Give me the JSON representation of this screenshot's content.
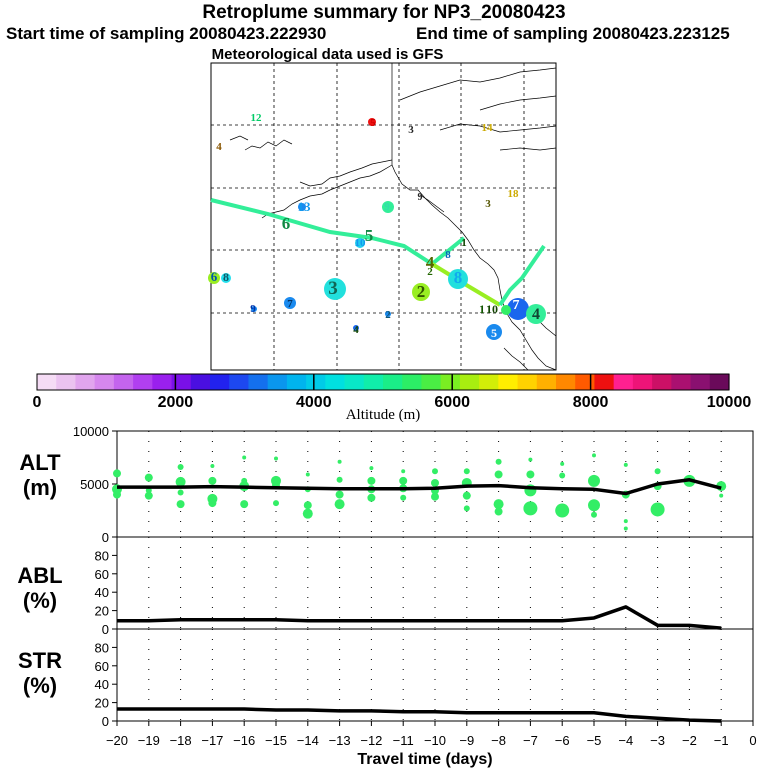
{
  "header": {
    "title": "Retroplume summary for NP3_20080423",
    "start_label": "Start time of sampling 20080423.222930",
    "end_label": "End time of sampling 20080423.223125",
    "met_label": "Meteorological data used is GFS"
  },
  "colors": {
    "track_high": "#33ee99",
    "track_mid": "#99ee22",
    "dot": "#33ee66",
    "line": "#000000"
  },
  "colorbar": {
    "ticks": [
      "0",
      "2000",
      "4000",
      "6000",
      "8000",
      "10000"
    ],
    "label": "Altitude (m)",
    "colors": [
      "#f5dcf5",
      "#ebc3f0",
      "#e1a5ee",
      "#d687ee",
      "#c464ee",
      "#b13ff0",
      "#9a20ee",
      "#7a10e8",
      "#4a0fe0",
      "#2222ee",
      "#1d48f0",
      "#1470ee",
      "#0a96ee",
      "#00b4ee",
      "#00cbe8",
      "#00e0e0",
      "#08e8c8",
      "#10eeaa",
      "#1aee88",
      "#2cee66",
      "#4aee44",
      "#7aee22",
      "#a8ee10",
      "#d2ee08",
      "#ffee00",
      "#ffd200",
      "#ffb000",
      "#ff8800",
      "#ff5a00",
      "#ee1010",
      "#ff2090",
      "#ee1478",
      "#cc1066",
      "#aa1070",
      "#8a1070",
      "#6a0a5a"
    ]
  },
  "map": {
    "labels": [
      {
        "t": "12",
        "c": "#00cc66"
      },
      {
        "t": "5",
        "c": "#cc0000"
      },
      {
        "t": "3",
        "c": "#222222"
      },
      {
        "t": "14",
        "c": "#ccaa00"
      },
      {
        "t": "4",
        "c": "#885500"
      },
      {
        "t": "9",
        "c": "#33ddaa"
      },
      {
        "t": "13",
        "c": "#1199ee"
      },
      {
        "t": "6",
        "c": "#118844"
      },
      {
        "t": "5",
        "c": "#118844"
      },
      {
        "t": "10",
        "c": "#1199ee"
      },
      {
        "t": "3",
        "c": "#555500"
      },
      {
        "t": "18",
        "c": "#ccaa00"
      },
      {
        "t": "4",
        "c": "#556600"
      },
      {
        "t": "8",
        "c": "#11aaee"
      },
      {
        "t": "3",
        "c": "#116655"
      },
      {
        "t": "2",
        "c": "#335500"
      },
      {
        "t": "8",
        "c": "#115566"
      },
      {
        "t": "1",
        "c": "#115500"
      },
      {
        "t": "10",
        "c": "#114400"
      },
      {
        "t": "7",
        "c": "#ffffff"
      },
      {
        "t": "4",
        "c": "#114433"
      },
      {
        "t": "5",
        "c": "#ffffff"
      },
      {
        "t": "6",
        "c": "#0055aa"
      },
      {
        "t": "7",
        "c": "#003366"
      },
      {
        "t": "9",
        "c": "#0033aa"
      },
      {
        "t": "2",
        "c": "#115577"
      },
      {
        "t": "4",
        "c": "#114400"
      },
      {
        "t": "8",
        "c": "#0066bb"
      },
      {
        "t": "1",
        "c": "#114400"
      },
      {
        "t": "2",
        "c": "#226600"
      },
      {
        "t": "9",
        "c": "#222222"
      }
    ]
  },
  "chart_data": [
    {
      "type": "line",
      "title": "ALT (m)",
      "xlabel": "Travel time (days)",
      "ylabel": "ALT (m)",
      "xlim": [
        -20,
        0
      ],
      "ylim": [
        0,
        10000
      ],
      "x_ticks": [
        -20,
        -19,
        -18,
        -17,
        -16,
        -15,
        -14,
        -13,
        -12,
        -11,
        -10,
        -9,
        -8,
        -7,
        -6,
        -5,
        -4,
        -3,
        -2,
        -1,
        0
      ],
      "y_ticks": [
        0,
        5000,
        10000
      ],
      "series": [
        {
          "name": "median altitude",
          "x": [
            -20,
            -19,
            -18,
            -17,
            -16,
            -15,
            -14,
            -13,
            -12,
            -11,
            -10,
            -9,
            -8,
            -7,
            -6,
            -5,
            -4,
            -3,
            -2,
            -1
          ],
          "values": [
            4700,
            4700,
            4700,
            4750,
            4700,
            4650,
            4600,
            4550,
            4550,
            4550,
            4600,
            4800,
            4850,
            4650,
            4550,
            4500,
            4100,
            5000,
            5400,
            4600
          ]
        }
      ],
      "scatter": {
        "x": [
          -20,
          -20,
          -20,
          -19,
          -19,
          -19,
          -18,
          -18,
          -18,
          -18,
          -17,
          -17,
          -17,
          -17,
          -16,
          -16,
          -16,
          -16,
          -15,
          -15,
          -15,
          -15,
          -14,
          -14,
          -14,
          -14,
          -13,
          -13,
          -13,
          -13,
          -12,
          -12,
          -12,
          -12,
          -11,
          -11,
          -11,
          -11,
          -10,
          -10,
          -10,
          -10,
          -9,
          -9,
          -9,
          -9,
          -8,
          -8,
          -8,
          -8,
          -7,
          -7,
          -7,
          -7,
          -6,
          -6,
          -6,
          -5,
          -5,
          -5,
          -5,
          -4,
          -4,
          -4,
          -4,
          -3,
          -3,
          -3,
          -2,
          -1,
          -1
        ],
        "y": [
          6000,
          4500,
          4000,
          5600,
          3900,
          4400,
          6600,
          5200,
          4200,
          3100,
          6700,
          5300,
          3600,
          3200,
          7500,
          5300,
          4800,
          3100,
          7400,
          5300,
          4900,
          3200,
          5900,
          4500,
          3000,
          2200,
          7100,
          5400,
          4000,
          3100,
          6500,
          5300,
          4500,
          3700,
          6200,
          5300,
          4600,
          3700,
          6200,
          5100,
          4400,
          3800,
          6200,
          5100,
          3900,
          2700,
          7100,
          5900,
          3100,
          2400,
          7300,
          5900,
          4400,
          2700,
          6900,
          5800,
          2500,
          7700,
          5300,
          3000,
          2100,
          6800,
          4000,
          1500,
          800,
          6200,
          4800,
          2600,
          5300,
          4800,
          3900
        ],
        "s": [
          4,
          5,
          4,
          4,
          4,
          3,
          3,
          5,
          3,
          4,
          2,
          4,
          5,
          4,
          2,
          3,
          5,
          4,
          2,
          5,
          4,
          3,
          2,
          3,
          4,
          5,
          2,
          3,
          4,
          5,
          2,
          4,
          4,
          4,
          2,
          4,
          4,
          3,
          3,
          4,
          4,
          4,
          3,
          5,
          4,
          3,
          3,
          4,
          5,
          4,
          2,
          4,
          6,
          7,
          2,
          3,
          7,
          2,
          6,
          6,
          3,
          2,
          4,
          2,
          2,
          3,
          4,
          7,
          6,
          5,
          2
        ]
      }
    },
    {
      "type": "line",
      "title": "ABL (%)",
      "xlim": [
        -20,
        0
      ],
      "ylim": [
        0,
        100
      ],
      "y_ticks": [
        0,
        20,
        40,
        60,
        80
      ],
      "series": [
        {
          "name": "ABL",
          "x": [
            -20,
            -19,
            -18,
            -17,
            -16,
            -15,
            -14,
            -13,
            -12,
            -11,
            -10,
            -9,
            -8,
            -7,
            -6,
            -5,
            -4,
            -3,
            -2,
            -1
          ],
          "values": [
            9,
            9,
            10,
            10,
            10,
            10,
            9,
            9,
            9,
            9,
            9,
            9,
            9,
            9,
            9,
            12,
            24,
            4,
            4,
            1
          ]
        }
      ]
    },
    {
      "type": "line",
      "title": "STR (%)",
      "xlim": [
        -20,
        0
      ],
      "ylim": [
        0,
        100
      ],
      "y_ticks": [
        0,
        20,
        40,
        60,
        80
      ],
      "series": [
        {
          "name": "STR",
          "x": [
            -20,
            -19,
            -18,
            -17,
            -16,
            -15,
            -14,
            -13,
            -12,
            -11,
            -10,
            -9,
            -8,
            -7,
            -6,
            -5,
            -4,
            -3,
            -2,
            -1
          ],
          "values": [
            13,
            13,
            13,
            13,
            13,
            12,
            12,
            11,
            11,
            10,
            10,
            9,
            9,
            9,
            9,
            9,
            5,
            3,
            1,
            0
          ]
        }
      ]
    }
  ],
  "panels": {
    "alt_label_1": "ALT",
    "alt_label_2": "(m)",
    "abl_label_1": "ABL",
    "abl_label_2": "(%)",
    "str_label_1": "STR",
    "str_label_2": "(%)",
    "x_label": "Travel time (days)"
  }
}
